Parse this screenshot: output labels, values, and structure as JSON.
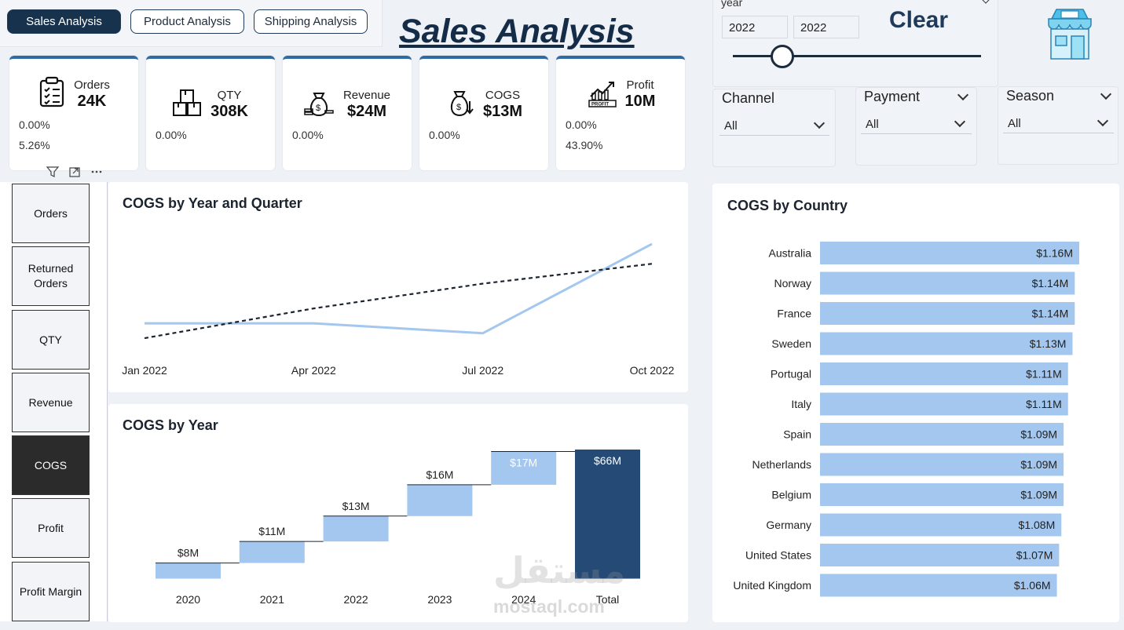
{
  "nav": {
    "tabs": [
      "Sales Analysis",
      "Product Analysis",
      "Shipping Analysis"
    ]
  },
  "title": "Sales Analysis",
  "kpis": [
    {
      "label": "Orders",
      "value": "24K",
      "pct1": "0.00%",
      "pct2": "5.26%",
      "icon": "clipboard-icon"
    },
    {
      "label": "QTY",
      "value": "308K",
      "pct1": "0.00%",
      "icon": "boxes-icon"
    },
    {
      "label": "Revenue",
      "value": "$24M",
      "pct1": "0.00%",
      "icon": "money-bag-icon"
    },
    {
      "label": "COGS",
      "value": "$13M",
      "pct1": "0.00%",
      "icon": "cost-bag-icon"
    },
    {
      "label": "Profit",
      "value": "10M",
      "pct1": "0.00%",
      "pct2": "43.90%",
      "icon": "profit-chart-icon"
    }
  ],
  "year_slicer": {
    "label": "year",
    "from": "2022",
    "to": "2022",
    "clear": "Clear",
    "position": 0.2
  },
  "filters": [
    {
      "label": "Channel",
      "value": "All"
    },
    {
      "label": "Payment",
      "value": "All"
    },
    {
      "label": "Season",
      "value": "All"
    }
  ],
  "measure_buttons": [
    "Orders",
    "Returned Orders",
    "QTY",
    "Revenue",
    "COGS",
    "Profit",
    "Profit Margin"
  ],
  "active_measure": "COGS",
  "chart_data": [
    {
      "type": "line",
      "title": "COGS by Year and Quarter",
      "x": [
        "Jan 2022",
        "Apr 2022",
        "Jul 2022",
        "Oct 2022"
      ],
      "series": [
        {
          "values": [
            3.0,
            3.0,
            2.8,
            4.6
          ]
        }
      ],
      "trendline": [
        2.7,
        3.3,
        3.8,
        4.2
      ],
      "ylim": [
        2.4,
        4.9
      ],
      "colors": {
        "line": "#a3c7ee",
        "trend": "#1c2430"
      }
    },
    {
      "type": "waterfall",
      "title": "COGS by Year",
      "categories": [
        "2020",
        "2021",
        "2022",
        "2023",
        "2024",
        "Total"
      ],
      "values": [
        8,
        11,
        13,
        16,
        17,
        66
      ],
      "labels": [
        "$8M",
        "$11M",
        "$13M",
        "$16M",
        "$17M",
        "$66M"
      ],
      "ylim": [
        -5,
        66
      ],
      "colors": {
        "step": "#a3c7ee",
        "total": "#244a75"
      }
    },
    {
      "type": "bar",
      "title": "COGS by Country",
      "categories": [
        "Australia",
        "Norway",
        "France",
        "Sweden",
        "Portugal",
        "Italy",
        "Spain",
        "Netherlands",
        "Belgium",
        "Germany",
        "United States",
        "United Kingdom"
      ],
      "values": [
        1.16,
        1.14,
        1.14,
        1.13,
        1.11,
        1.11,
        1.09,
        1.09,
        1.09,
        1.08,
        1.07,
        1.06
      ],
      "labels": [
        "$1.16M",
        "$1.14M",
        "$1.14M",
        "$1.13M",
        "$1.11M",
        "$1.11M",
        "$1.09M",
        "$1.09M",
        "$1.09M",
        "$1.08M",
        "$1.07M",
        "$1.06M"
      ],
      "colors": {
        "bar": "#a3c7ee"
      }
    }
  ],
  "watermark": {
    "arabic": "مستقل",
    "latin": "mostaql.com"
  }
}
